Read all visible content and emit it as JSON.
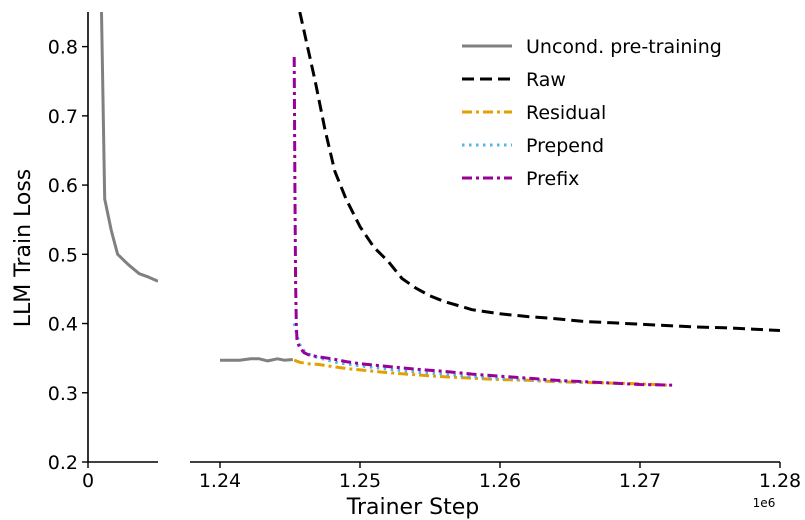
{
  "chart_data": {
    "type": "line",
    "title": "",
    "xlabel": "Trainer Step",
    "ylabel": "LLM Train Loss",
    "x_offset_label": "1e6",
    "ylim": [
      0.2,
      0.85
    ],
    "left_panel": {
      "xlim": [
        0,
        0.013
      ],
      "xticks": [
        0
      ],
      "xtick_labels": [
        "0"
      ]
    },
    "right_panel": {
      "xlim": [
        1.24,
        1.28
      ],
      "xticks": [
        1.24,
        1.25,
        1.26,
        1.27,
        1.28
      ],
      "xtick_labels": [
        "1.24",
        "1.25",
        "1.26",
        "1.27",
        "1.28"
      ]
    },
    "yticks": [
      0.2,
      0.3,
      0.4,
      0.5,
      0.6,
      0.7,
      0.8
    ],
    "ytick_labels": [
      "0.2",
      "0.3",
      "0.4",
      "0.5",
      "0.6",
      "0.7",
      "0.8"
    ],
    "legend_position": "top-right",
    "series": [
      {
        "name": "Uncond. pre-training",
        "color": "#808080",
        "dash": "solid",
        "panel": "left",
        "x": [
          0.0025,
          0.0031,
          0.0043,
          0.0055,
          0.0075,
          0.0095,
          0.0113,
          0.013
        ],
        "y": [
          0.85,
          0.58,
          0.535,
          0.5,
          0.485,
          0.472,
          0.467,
          0.461
        ]
      },
      {
        "name": "Uncond. pre-training",
        "color": "#808080",
        "dash": "solid",
        "panel": "right",
        "x": [
          1.24,
          1.2414,
          1.2422,
          1.2428,
          1.2434,
          1.2441,
          1.2446,
          1.2452
        ],
        "y": [
          0.347,
          0.347,
          0.349,
          0.349,
          0.346,
          0.349,
          0.347,
          0.348
        ]
      },
      {
        "name": "Raw",
        "color": "#000000",
        "dash": "dashed",
        "panel": "right",
        "x": [
          1.2457,
          1.2468,
          1.2475,
          1.2482,
          1.249,
          1.25,
          1.251,
          1.252,
          1.253,
          1.254,
          1.255,
          1.256,
          1.257,
          1.258,
          1.26,
          1.262,
          1.264,
          1.266,
          1.268,
          1.27,
          1.272,
          1.274,
          1.276,
          1.278,
          1.28
        ],
        "y": [
          0.85,
          0.75,
          0.68,
          0.62,
          0.58,
          0.54,
          0.51,
          0.49,
          0.465,
          0.451,
          0.44,
          0.432,
          0.426,
          0.42,
          0.414,
          0.41,
          0.407,
          0.403,
          0.401,
          0.399,
          0.397,
          0.395,
          0.394,
          0.392,
          0.39
        ]
      },
      {
        "name": "Residual",
        "color": "#E69F00",
        "dash": "dashdot",
        "panel": "right",
        "x": [
          1.2453,
          1.2457,
          1.2462,
          1.247,
          1.248,
          1.249,
          1.25,
          1.252,
          1.254,
          1.256,
          1.258,
          1.26,
          1.262,
          1.264,
          1.266,
          1.268,
          1.27,
          1.272
        ],
        "y": [
          0.347,
          0.344,
          0.342,
          0.341,
          0.338,
          0.335,
          0.333,
          0.329,
          0.326,
          0.323,
          0.321,
          0.319,
          0.318,
          0.316,
          0.315,
          0.314,
          0.313,
          0.311
        ]
      },
      {
        "name": "Prepend",
        "color": "#56B4E9",
        "dash": "dotted",
        "panel": "right",
        "x": [
          1.2453,
          1.2456,
          1.2458,
          1.2462,
          1.2468,
          1.2475,
          1.2485,
          1.25,
          1.252,
          1.254,
          1.256,
          1.258,
          1.26,
          1.262,
          1.264,
          1.266
        ],
        "y": [
          0.4,
          0.375,
          0.365,
          0.357,
          0.352,
          0.348,
          0.343,
          0.339,
          0.334,
          0.33,
          0.327,
          0.323,
          0.321,
          0.319,
          0.317,
          0.315
        ]
      },
      {
        "name": "Prefix",
        "color": "#990099",
        "dash": "dashdot",
        "panel": "right",
        "x": [
          1.2453,
          1.24535,
          1.2454,
          1.24545,
          1.2455,
          1.2457,
          1.246,
          1.2463,
          1.247,
          1.248,
          1.249,
          1.25,
          1.252,
          1.254,
          1.256,
          1.258,
          1.26,
          1.262,
          1.264,
          1.266,
          1.268,
          1.27,
          1.2725
        ],
        "y": [
          0.785,
          0.6,
          0.46,
          0.4,
          0.375,
          0.365,
          0.358,
          0.355,
          0.352,
          0.349,
          0.345,
          0.342,
          0.338,
          0.334,
          0.331,
          0.327,
          0.324,
          0.321,
          0.318,
          0.316,
          0.314,
          0.312,
          0.311
        ]
      }
    ],
    "legend": [
      {
        "label": "Uncond. pre-training",
        "color": "#808080",
        "dash": "solid"
      },
      {
        "label": "Raw",
        "color": "#000000",
        "dash": "dashed"
      },
      {
        "label": "Residual",
        "color": "#E69F00",
        "dash": "dashdot"
      },
      {
        "label": "Prepend",
        "color": "#56B4E9",
        "dash": "dotted"
      },
      {
        "label": "Prefix",
        "color": "#990099",
        "dash": "dashdot"
      }
    ]
  }
}
